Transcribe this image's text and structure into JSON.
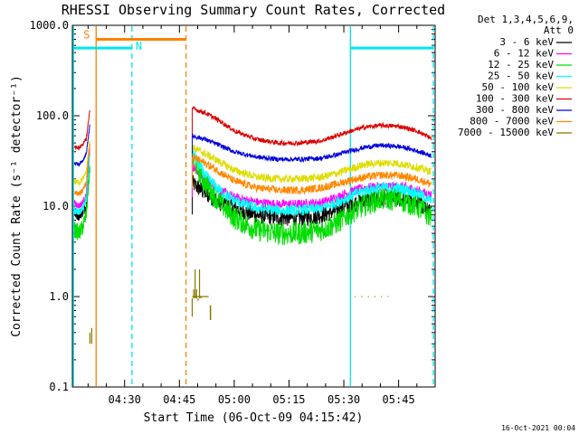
{
  "chart_data": {
    "type": "line",
    "title": "RHESSI Observing Summary Count Rates, Corrected",
    "xlabel": "Start Time (06-Oct-09 04:15:42)",
    "ylabel": "Corrected Count Rate (s⁻¹ detector⁻¹)",
    "yscale": "log",
    "ylim": [
      0.1,
      1000
    ],
    "y_ticks": [
      "0.1",
      "1.0",
      "10.0",
      "100.0",
      "1000.0"
    ],
    "x_range_min": [
      15.7,
      115
    ],
    "x_ticks": [
      {
        "label": "04:30",
        "t": 30
      },
      {
        "label": "04:45",
        "t": 45
      },
      {
        "label": "05:00",
        "t": 60
      },
      {
        "label": "05:15",
        "t": 75
      },
      {
        "label": "05:30",
        "t": 90
      },
      {
        "label": "05:45",
        "t": 105
      }
    ],
    "legend_header": [
      "Det 1,3,4,5,6,9,",
      "Att 0"
    ],
    "legend_position": "right",
    "series": [
      {
        "name": "3 - 6 keV",
        "color": "#000000",
        "x": [
          48.5,
          52,
          56,
          60,
          66,
          72,
          78,
          84,
          88,
          92,
          96,
          100,
          104,
          106,
          110,
          114
        ],
        "y": [
          18,
          14,
          11,
          9.5,
          8,
          7.5,
          7.3,
          8,
          9,
          10.5,
          11.5,
          12,
          12,
          12,
          11,
          9.5
        ]
      },
      {
        "name": "6 - 12 keV",
        "color": "#ff00ff",
        "x": [
          48.5,
          52,
          56,
          60,
          66,
          72,
          78,
          84,
          88,
          92,
          96,
          100,
          104,
          106,
          110,
          114
        ],
        "y": [
          28,
          20,
          15,
          12.5,
          11,
          10.5,
          10.5,
          11,
          12.5,
          14.5,
          16,
          16.5,
          16.5,
          16.5,
          15,
          13
        ]
      },
      {
        "name": "12 - 25 keV",
        "color": "#00dd00",
        "x": [
          48.5,
          52,
          56,
          60,
          66,
          72,
          78,
          84,
          88,
          92,
          96,
          100,
          104,
          106,
          110,
          114
        ],
        "y": [
          35,
          18,
          11,
          7.5,
          5.5,
          5,
          5,
          5.5,
          6.5,
          8.5,
          10.5,
          12,
          12,
          11.5,
          10,
          7.5
        ]
      },
      {
        "name": "25 - 50 keV",
        "color": "#00ffff",
        "x": [
          48.5,
          52,
          56,
          60,
          66,
          72,
          78,
          84,
          88,
          92,
          96,
          100,
          104,
          106,
          110,
          114
        ],
        "y": [
          40,
          22,
          15,
          11.5,
          9.5,
          9,
          9,
          9.5,
          11,
          13,
          15,
          16,
          16,
          15.5,
          14,
          11.5
        ]
      },
      {
        "name": "50 - 100 keV",
        "color": "#dddd00",
        "x": [
          48.5,
          52,
          56,
          60,
          66,
          72,
          78,
          84,
          88,
          92,
          96,
          100,
          104,
          106,
          110,
          114
        ],
        "y": [
          45,
          38,
          31,
          25,
          21,
          20,
          20,
          21,
          23,
          26,
          29,
          30,
          30,
          29,
          27,
          24
        ]
      },
      {
        "name": "100 - 300 keV",
        "color": "#dd0000",
        "x": [
          48.5,
          52,
          56,
          60,
          66,
          72,
          78,
          84,
          88,
          92,
          96,
          100,
          104,
          106,
          110,
          114
        ],
        "y": [
          120,
          108,
          88,
          68,
          55,
          50,
          50,
          53,
          60,
          68,
          75,
          78,
          77,
          75,
          68,
          56
        ]
      },
      {
        "name": "300 - 800 keV",
        "color": "#0000dd",
        "x": [
          48.5,
          52,
          56,
          60,
          66,
          72,
          78,
          84,
          88,
          92,
          96,
          100,
          104,
          106,
          110,
          114
        ],
        "y": [
          60,
          55,
          47,
          40,
          35,
          33,
          33,
          34,
          37,
          41,
          45,
          47,
          46,
          45,
          41,
          36
        ]
      },
      {
        "name": "800 - 7000 keV",
        "color": "#ff8800",
        "x": [
          48.5,
          52,
          56,
          60,
          66,
          72,
          78,
          84,
          88,
          92,
          96,
          100,
          104,
          106,
          110,
          114
        ],
        "y": [
          35,
          30,
          24,
          19,
          16,
          15,
          15,
          16,
          17.5,
          19.5,
          21,
          22,
          22,
          21.5,
          20,
          17.5
        ]
      },
      {
        "name": "7000 - 15000 keV",
        "color": "#887700",
        "x": [
          48.5,
          48.9,
          49.3,
          49.7,
          50.1,
          50.5,
          50.9
        ],
        "y": [
          0.6,
          1.2,
          2,
          1.2,
          0.9,
          2,
          1.0
        ]
      }
    ],
    "early_segment": {
      "x": [
        16.3,
        17.5,
        18.5,
        19.5,
        20.5
      ],
      "series": {
        "3 - 6 keV": [
          8.5,
          8.0,
          8.8,
          10,
          30
        ],
        "6 - 12 keV": [
          11,
          10,
          11,
          13,
          45
        ],
        "12 - 25 keV": [
          5.5,
          5.0,
          5.8,
          8,
          28
        ],
        "25 - 50 keV": [
          9,
          8.5,
          9.5,
          12,
          38
        ],
        "50 - 100 keV": [
          19,
          18,
          20,
          24,
          55
        ],
        "100 - 300 keV": [
          45,
          44,
          48,
          55,
          120
        ],
        "300 - 800 keV": [
          30,
          29,
          32,
          38,
          80
        ],
        "800 - 7000 keV": [
          14,
          13.5,
          15,
          18,
          50
        ]
      }
    },
    "flag_bars": [
      {
        "label": "S",
        "color": "#ff8000",
        "t_start": 22.2,
        "t_end": 46.8,
        "level": 700
      },
      {
        "label": "N",
        "color": "#00e5ee",
        "t_start": 16.0,
        "t_end": 32.0,
        "level": 560
      },
      {
        "label": "",
        "color": "#00e5ee",
        "t_start": 91.8,
        "t_end": 114.5,
        "level": 560
      }
    ],
    "vertical_markers": [
      {
        "t": 22.2,
        "color": "#ff8000",
        "style": "solid"
      },
      {
        "t": 46.8,
        "color": "#ff8000",
        "style": "dashed"
      },
      {
        "t": 16.0,
        "color": "#00e5ee",
        "style": "solid"
      },
      {
        "t": 32.0,
        "color": "#00e5ee",
        "style": "dashed"
      },
      {
        "t": 91.8,
        "color": "#00e5ee",
        "style": "solid"
      },
      {
        "t": 114.5,
        "color": "#00e5ee",
        "style": "dashed"
      }
    ]
  },
  "timestamp": "16-Oct-2021 00:04"
}
